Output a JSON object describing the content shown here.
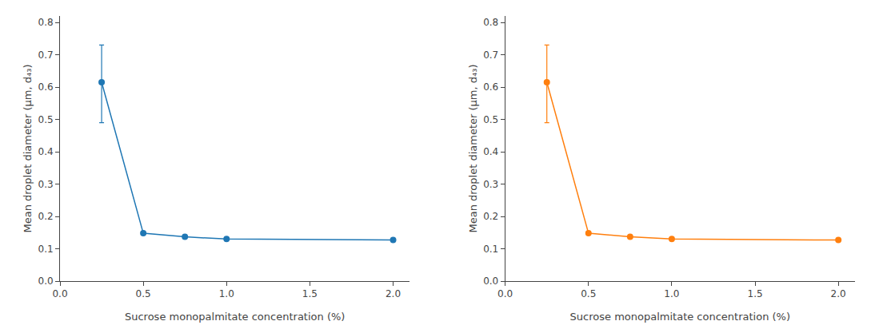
{
  "chart_data": [
    {
      "type": "line",
      "xlabel": "Sucrose monopalmitate concentration (%)",
      "ylabel": "Mean droplet diameter (µm, d₄₃)",
      "x": [
        0.25,
        0.5,
        0.75,
        1.0,
        2.0
      ],
      "series": [
        {
          "values": [
            0.615,
            0.148,
            0.137,
            0.13,
            0.127
          ],
          "error_plus": [
            0.115,
            0,
            0,
            0,
            0
          ],
          "error_minus": [
            0.125,
            0,
            0,
            0,
            0
          ],
          "marker": "circle"
        }
      ],
      "xlim": [
        0.0,
        2.1
      ],
      "ylim": [
        0.0,
        0.82
      ],
      "xticks": [
        {
          "value": 0.0,
          "label": "0.0"
        },
        0.5,
        {
          "value": 1.0,
          "label": "1.0"
        },
        1.5,
        {
          "value": 2.0,
          "label": "2.0"
        }
      ],
      "yticks": [
        {
          "value": 0.0,
          "label": "0.0"
        },
        0.1,
        0.2,
        0.3,
        0.4,
        0.5,
        0.6,
        0.7,
        0.8
      ],
      "grid": false
    },
    {
      "type": "line",
      "xlabel": "Sucrose monopalmitate concentration (%)",
      "ylabel": "Mean droplet diameter (µm, d₄₃)",
      "x": [
        0.25,
        0.5,
        0.75,
        1.0,
        2.0
      ],
      "series": [
        {
          "values": [
            0.615,
            0.148,
            0.137,
            0.13,
            0.127
          ],
          "error_plus": [
            0.115,
            0,
            0,
            0,
            0
          ],
          "error_minus": [
            0.125,
            0,
            0,
            0,
            0
          ],
          "marker": "circle"
        }
      ],
      "xlim": [
        0.0,
        2.1
      ],
      "ylim": [
        0.0,
        0.82
      ],
      "xticks": [
        {
          "value": 0.0,
          "label": "0.0"
        },
        0.5,
        {
          "value": 1.0,
          "label": "1.0"
        },
        1.5,
        {
          "value": 2.0,
          "label": "2.0"
        }
      ],
      "yticks": [
        {
          "value": 0.0,
          "label": "0.0"
        },
        0.1,
        0.2,
        0.3,
        0.4,
        0.5,
        0.6,
        0.7,
        0.8
      ],
      "grid": false
    }
  ]
}
